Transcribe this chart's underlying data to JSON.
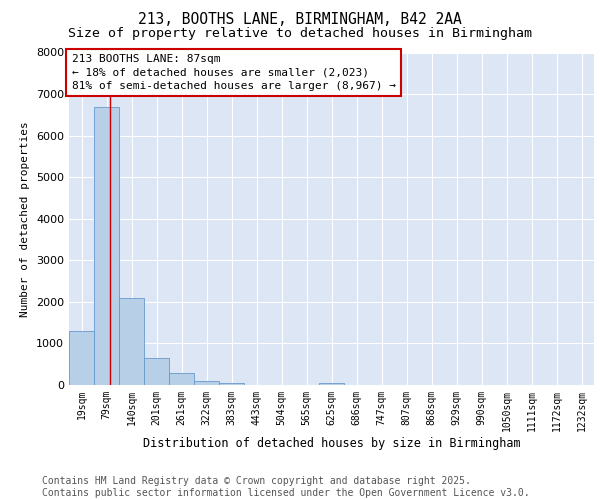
{
  "title1": "213, BOOTHS LANE, BIRMINGHAM, B42 2AA",
  "title2": "Size of property relative to detached houses in Birmingham",
  "xlabel": "Distribution of detached houses by size in Birmingham",
  "ylabel": "Number of detached properties",
  "categories": [
    "19sqm",
    "79sqm",
    "140sqm",
    "201sqm",
    "261sqm",
    "322sqm",
    "383sqm",
    "443sqm",
    "504sqm",
    "565sqm",
    "625sqm",
    "686sqm",
    "747sqm",
    "807sqm",
    "868sqm",
    "929sqm",
    "990sqm",
    "1050sqm",
    "1111sqm",
    "1172sqm",
    "1232sqm"
  ],
  "values": [
    1300,
    6700,
    2100,
    650,
    280,
    100,
    50,
    0,
    0,
    0,
    50,
    0,
    0,
    0,
    0,
    0,
    0,
    0,
    0,
    0,
    0
  ],
  "bar_color": "#b8cfe8",
  "bar_edge_color": "#6699cc",
  "background_color": "#dce6f5",
  "grid_color": "#ffffff",
  "vline_color": "#cc0000",
  "vline_x": 1.15,
  "annotation_text": "213 BOOTHS LANE: 87sqm\n← 18% of detached houses are smaller (2,023)\n81% of semi-detached houses are larger (8,967) →",
  "annotation_box_color": "#cc0000",
  "ylim": [
    0,
    8000
  ],
  "yticks": [
    0,
    1000,
    2000,
    3000,
    4000,
    5000,
    6000,
    7000,
    8000
  ],
  "footer1": "Contains HM Land Registry data © Crown copyright and database right 2025.",
  "footer2": "Contains public sector information licensed under the Open Government Licence v3.0.",
  "title_fontsize": 10.5,
  "subtitle_fontsize": 9.5,
  "footer_fontsize": 7,
  "ylabel_fontsize": 8,
  "xlabel_fontsize": 8.5,
  "ytick_fontsize": 8,
  "xtick_fontsize": 7
}
